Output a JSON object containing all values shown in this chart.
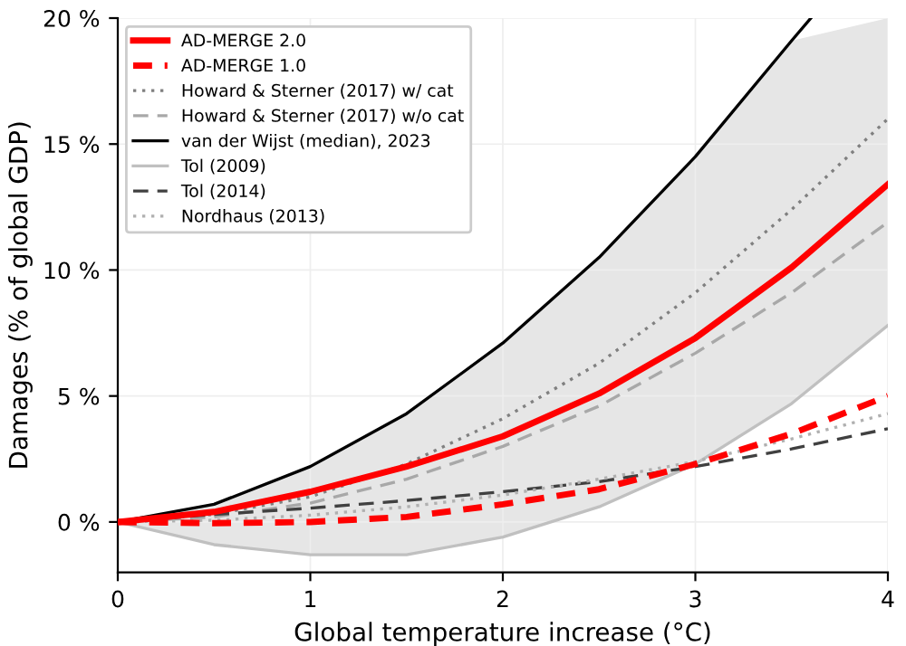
{
  "chart_data": {
    "type": "line",
    "xlabel": "Global temperature increase (°C)",
    "ylabel": "Damages (% of global GDP)",
    "x": [
      0,
      0.5,
      1,
      1.5,
      2,
      2.5,
      3,
      3.5,
      4
    ],
    "xlim": [
      0,
      4
    ],
    "xticks": [
      0,
      1,
      2,
      3,
      4
    ],
    "ylim": [
      -2,
      20
    ],
    "yticks": [
      {
        "value": 0,
        "label": "0 %"
      },
      {
        "value": 5,
        "label": "5 %"
      },
      {
        "value": 10,
        "label": "10 %"
      },
      {
        "value": 15,
        "label": "15 %"
      },
      {
        "value": 20,
        "label": "20 %"
      }
    ],
    "grid": true,
    "legend": "top left",
    "series": [
      {
        "name": "AD-MERGE 2.0",
        "color": "#ff0000",
        "line_style": "solid",
        "values": [
          0,
          0.4,
          1.2,
          2.2,
          3.4,
          5.1,
          7.3,
          10.1,
          13.4
        ],
        "lower": [
          0,
          -0.9,
          -1.3,
          -1.3,
          -0.6,
          0.6,
          2.3,
          4.7,
          7.8
        ],
        "upper": [
          0,
          0.7,
          2.2,
          4.3,
          7.1,
          10.5,
          14.5,
          19.1,
          20
        ]
      },
      {
        "name": "AD-MERGE 1.0",
        "color": "#ff0000",
        "line_style": "dashed",
        "values": [
          0,
          -0.05,
          0,
          0.2,
          0.7,
          1.3,
          2.3,
          3.5,
          5.0
        ]
      },
      {
        "name": "Howard & Sterner (2017) w/ cat",
        "color": "#808080",
        "line_style": "dotted",
        "values": [
          0,
          0.3,
          1.0,
          2.3,
          4.1,
          6.3,
          9.1,
          12.4,
          16.0
        ]
      },
      {
        "name": "Howard & Sterner (2017) w/o cat",
        "color": "#a8a8a8",
        "line_style": "dashed",
        "values": [
          0,
          0.2,
          0.75,
          1.7,
          3.0,
          4.6,
          6.7,
          9.1,
          11.9
        ]
      },
      {
        "name": "van der Wijst (median), 2023",
        "color": "#000000",
        "line_style": "solid",
        "x": [
          0,
          0.5,
          1,
          1.5,
          2,
          2.5,
          3,
          3.5,
          3.6
        ],
        "values": [
          0,
          0.7,
          2.2,
          4.3,
          7.1,
          10.5,
          14.5,
          19.1,
          20
        ]
      },
      {
        "name": "Tol (2009)",
        "color": "#c0c0c0",
        "line_style": "solid",
        "values": [
          0,
          -0.9,
          -1.3,
          -1.3,
          -0.6,
          0.6,
          2.3,
          4.7,
          7.8
        ]
      },
      {
        "name": "Tol (2014)",
        "color": "#404040",
        "line_style": "dashed",
        "values": [
          0,
          0.3,
          0.55,
          0.85,
          1.2,
          1.6,
          2.2,
          2.9,
          3.7
        ]
      },
      {
        "name": "Nordhaus (2013)",
        "color": "#b0b0b0",
        "line_style": "dotted",
        "values": [
          0,
          0.07,
          0.27,
          0.6,
          1.07,
          1.7,
          2.4,
          3.3,
          4.3
        ]
      }
    ]
  }
}
